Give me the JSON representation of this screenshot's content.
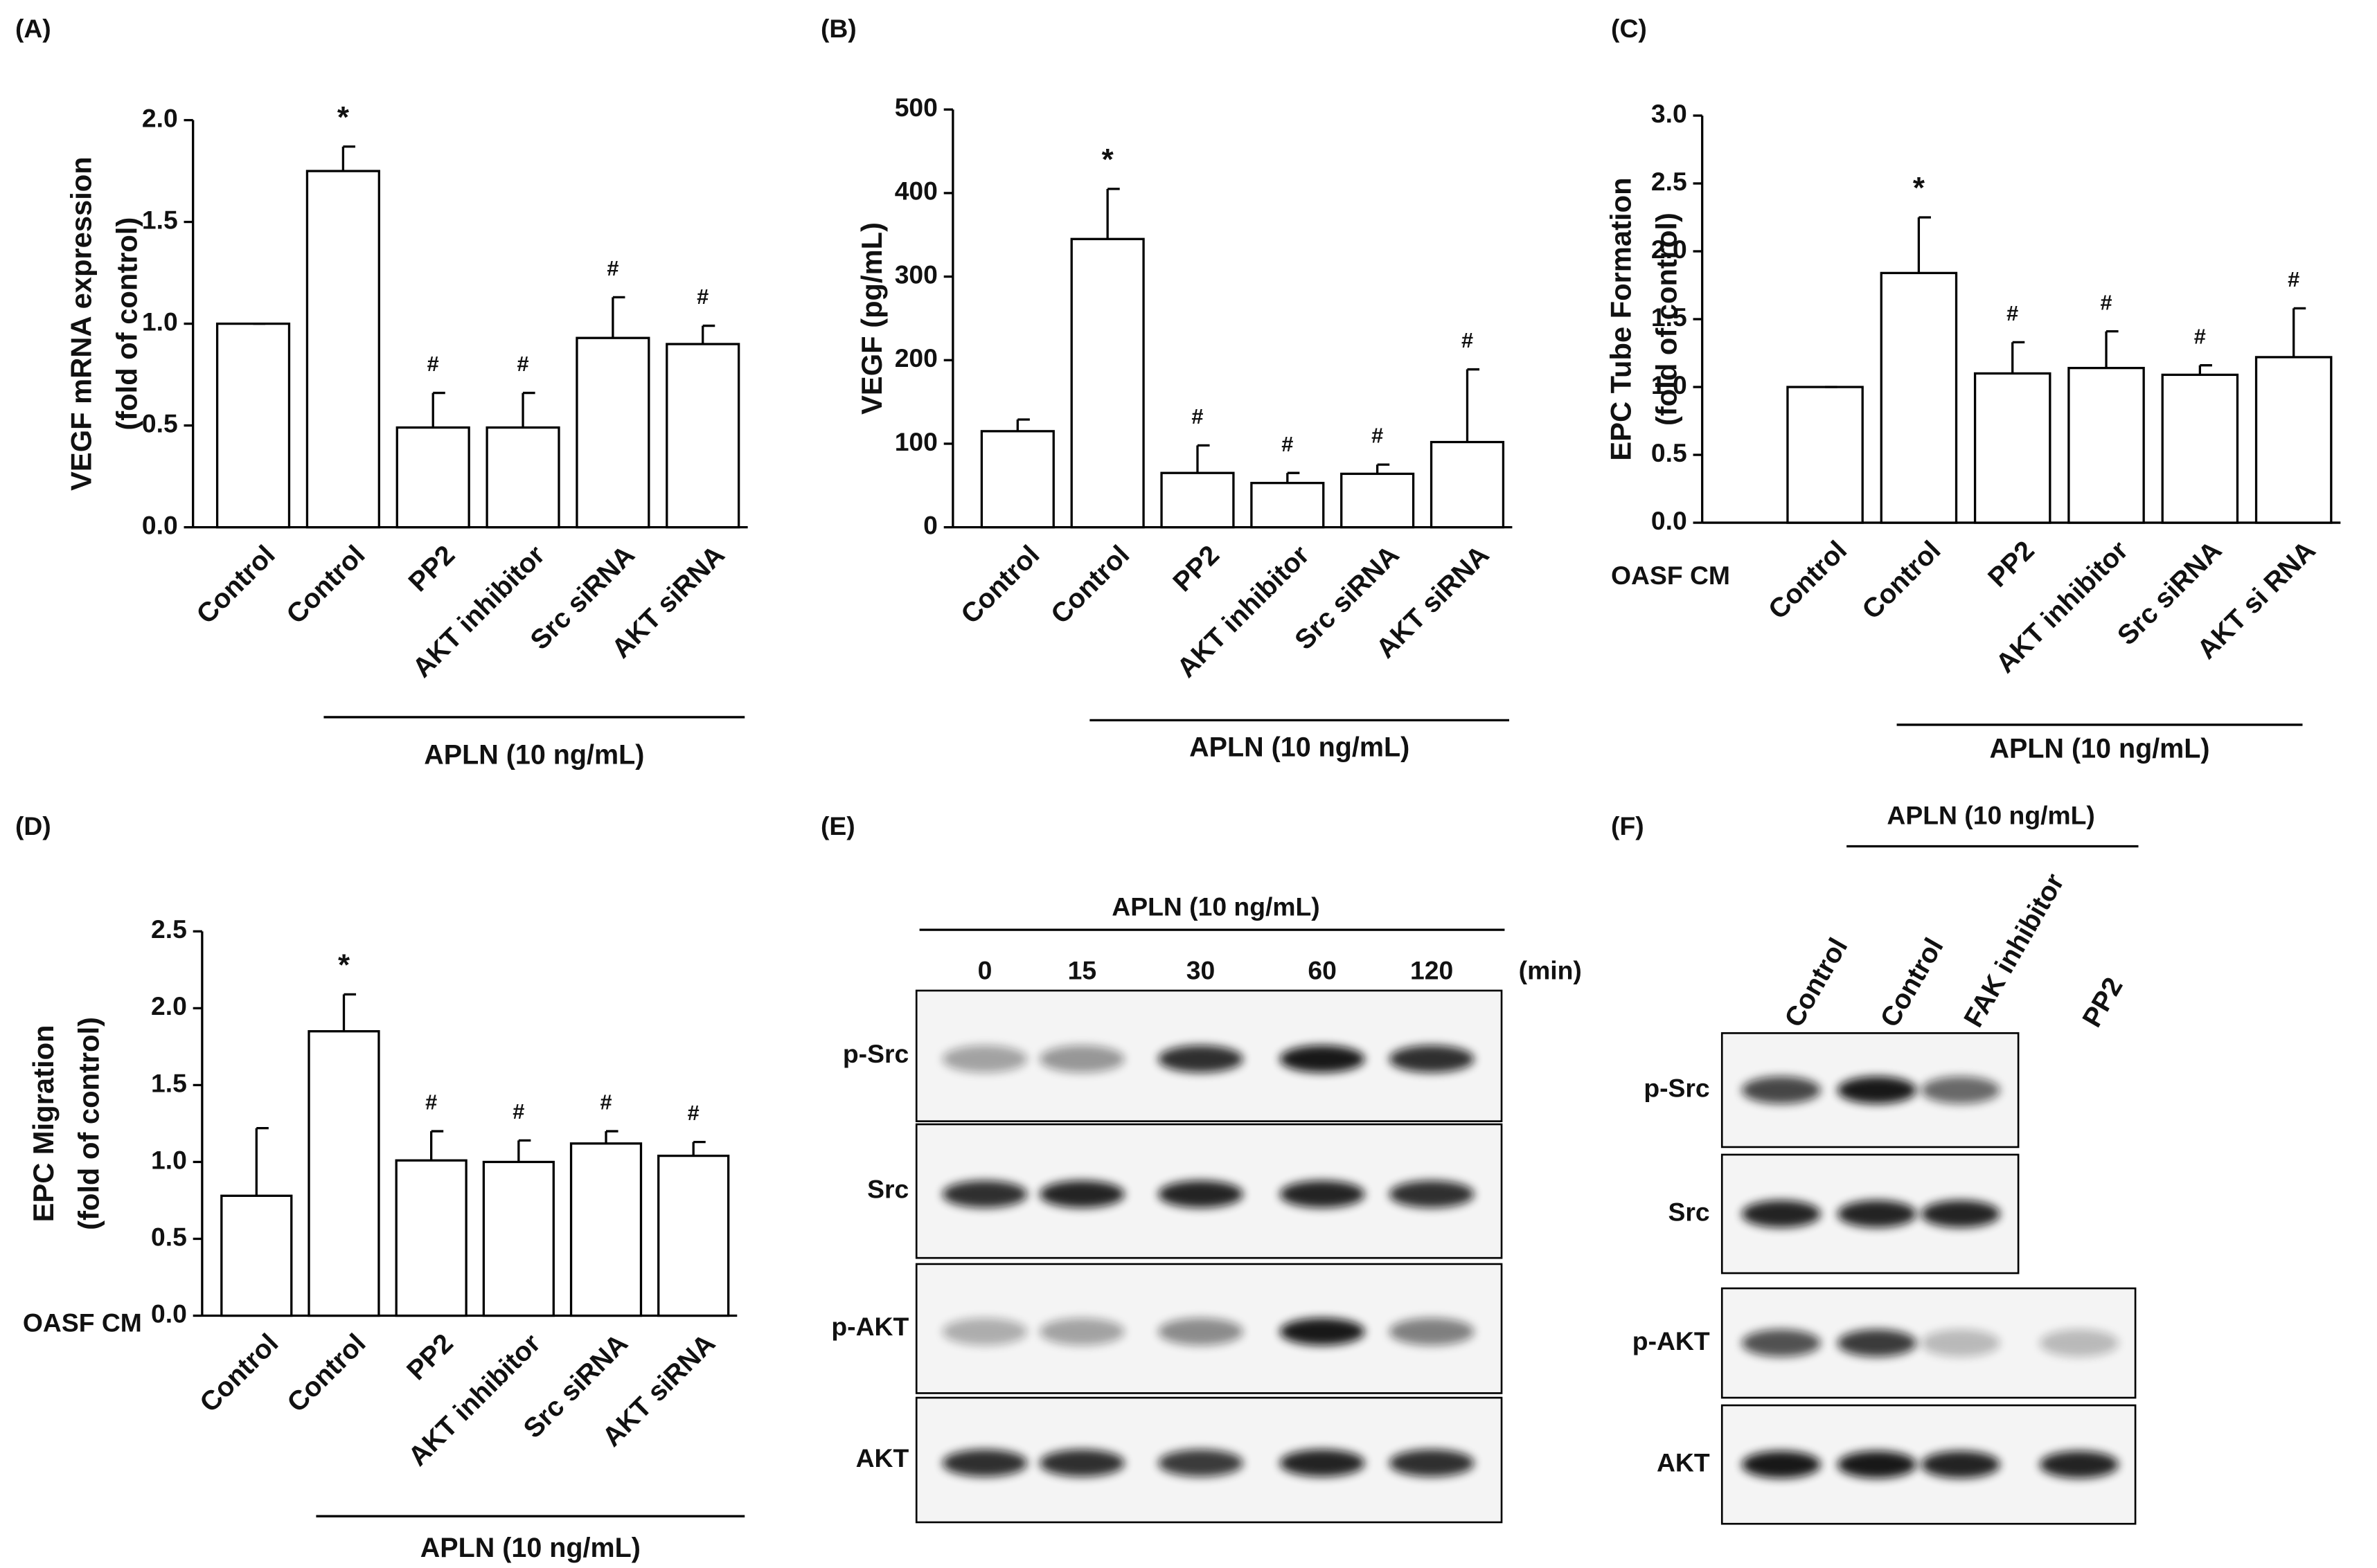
{
  "chart_data": [
    {
      "type": "bar",
      "panel": "(A)",
      "ylabel": [
        "VEGF mRNA expression",
        "(fold of control)"
      ],
      "categories": [
        "Control",
        "Control",
        "PP2",
        "AKT inhibitor",
        "Src siRNA",
        "AKT siRNA"
      ],
      "values": [
        1.0,
        1.75,
        0.49,
        0.49,
        0.93,
        0.9
      ],
      "errors": [
        0,
        0.12,
        0.17,
        0.17,
        0.2,
        0.09
      ],
      "annotations": [
        null,
        "*",
        "#",
        "#",
        "#",
        "#"
      ],
      "group_label": "APLN (10 ng/mL)",
      "ylim": [
        0,
        2
      ],
      "yticks": [
        {
          "value": 0,
          "label": "0.0"
        },
        0.5,
        {
          "value": 1,
          "label": "1.0"
        },
        1.5,
        {
          "value": 2,
          "label": "2.0"
        }
      ],
      "color": "#ffffff"
    },
    {
      "type": "bar",
      "panel": "(B)",
      "ylabel": [
        "VEGF (pg/mL)"
      ],
      "categories": [
        "Control",
        "Control",
        "PP2",
        "AKT inhibitor",
        "Src siRNA",
        "AKT siRNA"
      ],
      "values": [
        115,
        345,
        65,
        53,
        64,
        102
      ],
      "errors": [
        14,
        60,
        33,
        12,
        11,
        87
      ],
      "annotations": [
        null,
        "*",
        "#",
        "#",
        "#",
        "#"
      ],
      "group_label": "APLN (10 ng/mL)",
      "ylim": [
        0,
        500
      ],
      "yticks": [
        0,
        100,
        200,
        300,
        400,
        500
      ],
      "color": "#ffffff"
    },
    {
      "type": "bar",
      "panel": "(C)",
      "ylabel": [
        "EPC Tube Formation",
        "(fold of control)"
      ],
      "row_label": "OASF CM",
      "categories": [
        "Control",
        "Control",
        "PP2",
        "AKT inhibitor",
        "Src siRNA",
        "AKT si RNA"
      ],
      "values": [
        1.0,
        1.84,
        1.1,
        1.14,
        1.09,
        1.22
      ],
      "errors": [
        0,
        0.41,
        0.23,
        0.27,
        0.07,
        0.36
      ],
      "annotations": [
        null,
        "*",
        "#",
        "#",
        "#",
        "#"
      ],
      "group_label": "APLN (10 ng/mL)",
      "ylim": [
        0,
        3
      ],
      "yticks": [
        {
          "value": 0,
          "label": "0.0"
        },
        0.5,
        {
          "value": 1,
          "label": "1.0"
        },
        1.5,
        {
          "value": 2,
          "label": "2.0"
        },
        2.5,
        {
          "value": 3,
          "label": "3.0"
        }
      ],
      "color": "#ffffff"
    },
    {
      "type": "bar",
      "panel": "(D)",
      "ylabel": [
        "EPC Migration",
        "(fold of control)"
      ],
      "row_label": "OASF CM",
      "categories": [
        "Control",
        "Control",
        "PP2",
        "AKT inhibitor",
        "Src siRNA",
        "AKT siRNA"
      ],
      "values": [
        0.78,
        1.85,
        1.01,
        1.0,
        1.12,
        1.04
      ],
      "errors": [
        0.44,
        0.24,
        0.19,
        0.14,
        0.08,
        0.09
      ],
      "annotations": [
        null,
        "*",
        "#",
        "#",
        "#",
        "#"
      ],
      "group_label": "APLN (10 ng/mL)",
      "ylim": [
        0,
        2.5
      ],
      "yticks": [
        {
          "value": 0,
          "label": "0.0"
        },
        0.5,
        {
          "value": 1,
          "label": "1.0"
        },
        1.5,
        {
          "value": 2,
          "label": "2.0"
        },
        2.5
      ],
      "color": "#ffffff"
    }
  ],
  "blots": [
    {
      "panel": "(E)",
      "treatment": "APLN (10 ng/mL)",
      "lanes": [
        "0",
        "15",
        "30",
        "60",
        "120"
      ],
      "unit": "(min)",
      "rows": [
        "p-Src",
        "Src",
        "p-AKT",
        "AKT"
      ]
    },
    {
      "panel": "(F)",
      "treatment": "APLN (10 ng/mL)",
      "lanes": [
        "Control",
        "Control",
        "FAK inhibitor",
        "PP2"
      ],
      "rows": [
        "p-Src",
        "Src",
        "p-AKT",
        "AKT"
      ]
    }
  ]
}
